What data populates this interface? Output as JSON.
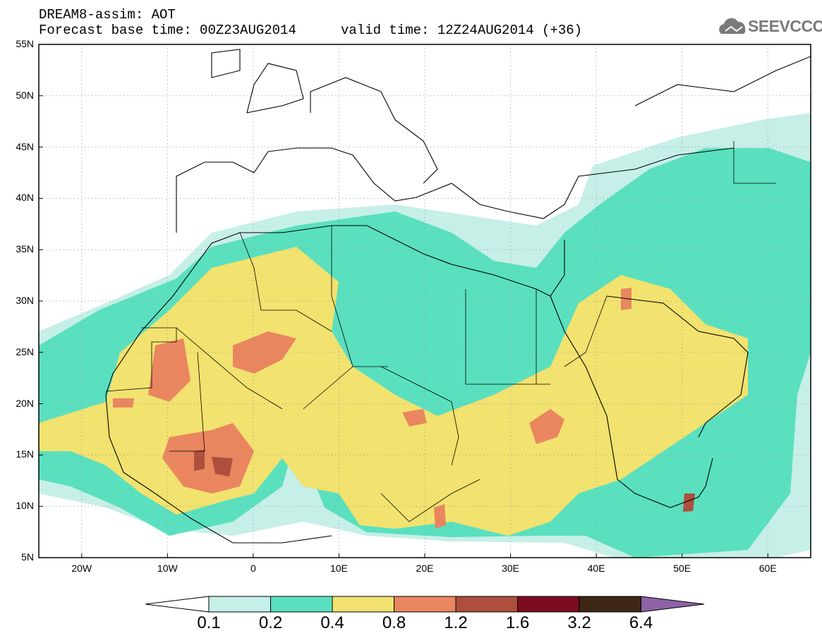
{
  "title": {
    "line1": "DREAM8-assim: AOT",
    "line2_left": "Forecast base time: 00Z23AUG2014",
    "line2_right": "valid time: 12Z24AUG2014 (+36)"
  },
  "logo": {
    "text": "SEEVCCC",
    "icon": "cloud-icon"
  },
  "map": {
    "lon_range": [
      -25,
      65
    ],
    "lat_range": [
      5,
      55
    ],
    "lat_labels": [
      "55N",
      "50N",
      "45N",
      "40N",
      "35N",
      "30N",
      "25N",
      "20N",
      "15N",
      "10N",
      "5N"
    ],
    "lon_labels": [
      "20W",
      "10W",
      "0",
      "10E",
      "20E",
      "30E",
      "40E",
      "50E",
      "60E"
    ]
  },
  "colorbar": {
    "labels": [
      "0.1",
      "0.2",
      "0.4",
      "0.8",
      "1.2",
      "1.6",
      "3.2",
      "6.4"
    ],
    "colors": [
      "#ffffff",
      "#c6efe8",
      "#5ae0be",
      "#f2e26f",
      "#e9865f",
      "#ae4f3e",
      "#7c0d20",
      "#3d2714",
      "#8e62a6"
    ]
  }
}
